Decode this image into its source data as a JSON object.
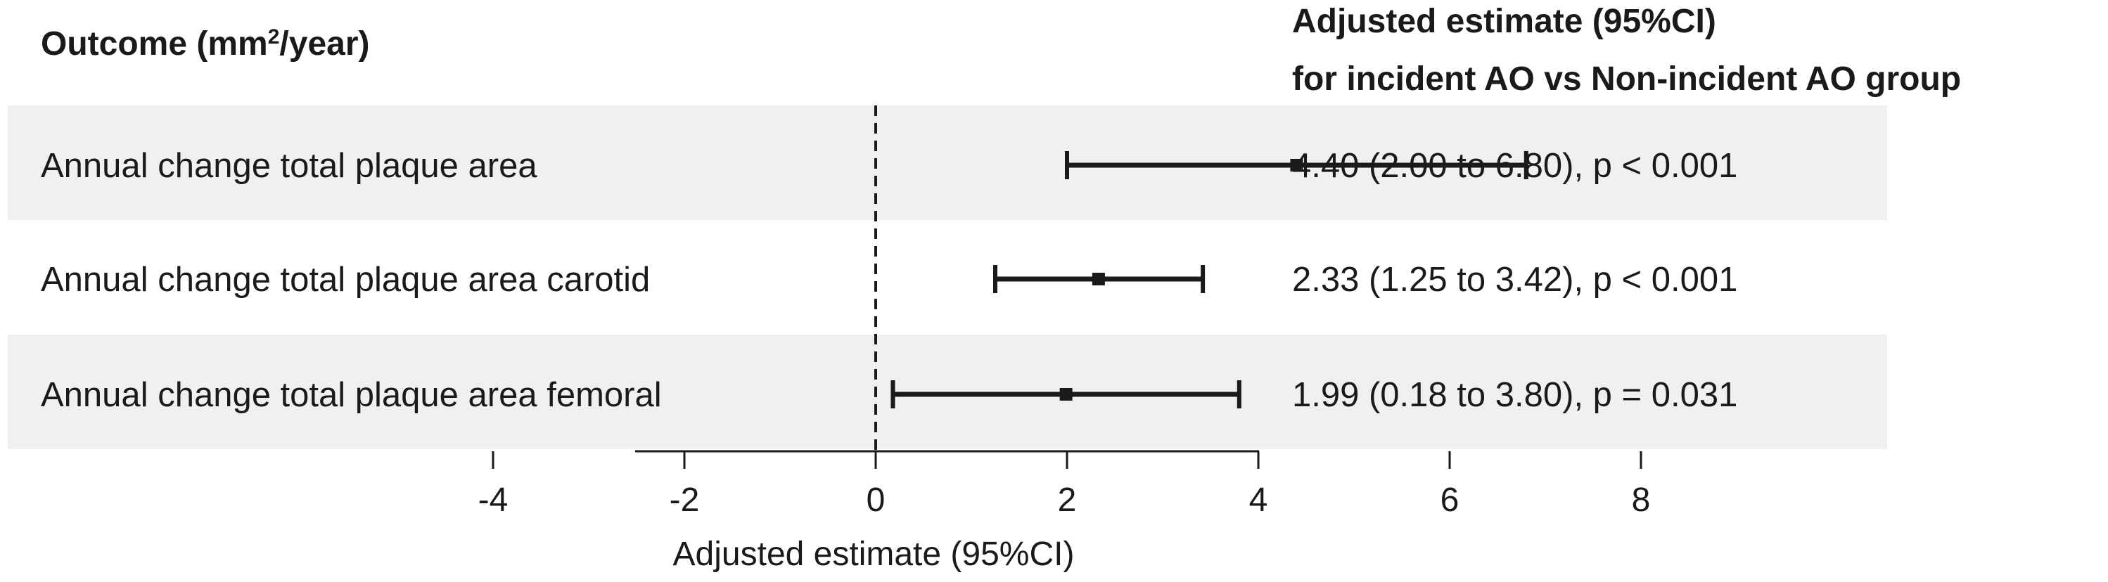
{
  "header": {
    "outcome_prefix": "Outcome (mm",
    "outcome_sup": "2",
    "outcome_suffix": "/year)",
    "estimate_line1": "Adjusted estimate (95%CI)",
    "estimate_line2": "for incident AO vs Non-incident AO group"
  },
  "chart_data": {
    "type": "forest",
    "xlabel": "Adjusted estimate (95%CI)",
    "xlim": [
      -5,
      8
    ],
    "ticks": [
      -4,
      -2,
      0,
      2,
      4,
      6,
      8
    ],
    "reference_line": 0,
    "rows": [
      {
        "label": "Annual change total plaque area",
        "estimate": 4.4,
        "lower": 2.0,
        "upper": 6.8,
        "text": "4.40 (2.00 to 6.80), p < 0.001",
        "shaded": true
      },
      {
        "label": "Annual change total plaque area carotid",
        "estimate": 2.33,
        "lower": 1.25,
        "upper": 3.42,
        "text": "2.33 (1.25 to 3.42), p < 0.001",
        "shaded": false
      },
      {
        "label": "Annual change total plaque area femoral",
        "estimate": 1.99,
        "lower": 0.18,
        "upper": 3.8,
        "text": "1.99 (0.18 to 3.80), p = 0.031",
        "shaded": true
      }
    ],
    "colors": {
      "band": "#eef1ee",
      "ink": "#1a1a1a"
    }
  }
}
